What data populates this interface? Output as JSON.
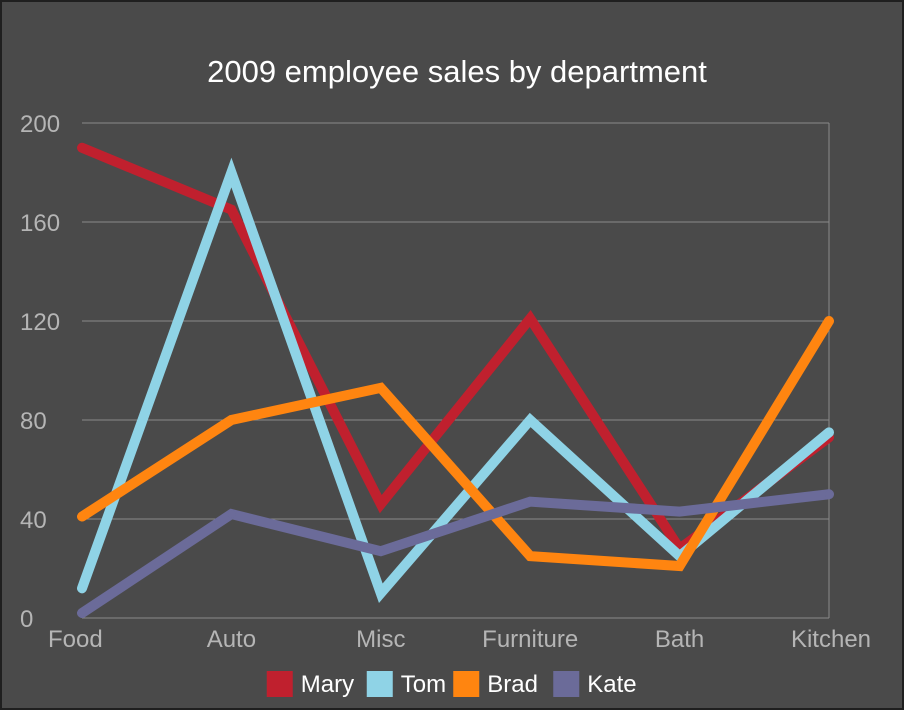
{
  "chart_data": {
    "type": "line",
    "title": "2009 employee sales by department",
    "categories": [
      "Food",
      "Auto",
      "Misc",
      "Furniture",
      "Bath",
      "Kitchen"
    ],
    "ylim": [
      0,
      200
    ],
    "yticks": [
      "0",
      "40",
      "80",
      "120",
      "160",
      "200"
    ],
    "grid": true,
    "legend_position": "bottom",
    "series": [
      {
        "name": "Mary",
        "color": "#c0202e",
        "values": [
          190,
          165,
          46,
          121,
          28,
          73
        ]
      },
      {
        "name": "Tom",
        "color": "#8fd3e6",
        "values": [
          12,
          180,
          10,
          80,
          25,
          75
        ]
      },
      {
        "name": "Brad",
        "color": "#ff8510",
        "values": [
          41,
          80,
          93,
          25,
          21,
          120
        ]
      },
      {
        "name": "Kate",
        "color": "#6b6b99",
        "values": [
          2,
          42,
          27,
          47,
          43,
          50
        ]
      }
    ]
  }
}
